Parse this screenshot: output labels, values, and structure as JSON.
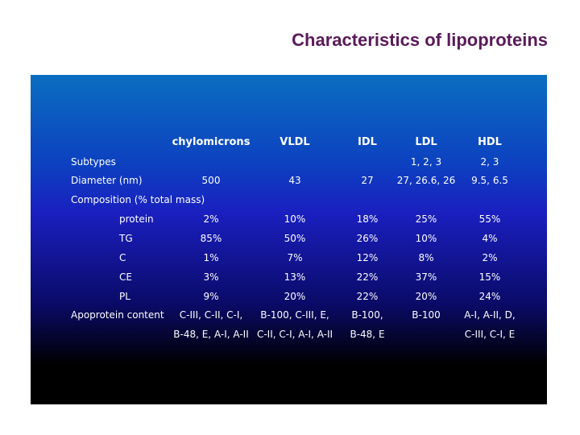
{
  "slide": {
    "title": "Characteristics of lipoproteins"
  },
  "table": {
    "headers": [
      "chylomicrons",
      "VLDL",
      "IDL",
      "LDL",
      "HDL"
    ],
    "rows": [
      {
        "label": "Subtypes",
        "values": [
          "",
          "",
          "",
          "1, 2, 3",
          "2, 3"
        ]
      },
      {
        "label": "Diameter (nm)",
        "values": [
          "500",
          "43",
          "27",
          "27, 26.6, 26",
          "9.5, 6.5"
        ]
      },
      {
        "label": "Composition (% total mass)",
        "values": [
          "",
          "",
          "",
          "",
          ""
        ]
      },
      {
        "label": "protein",
        "values": [
          "2%",
          "10%",
          "18%",
          "25%",
          "55%"
        ]
      },
      {
        "label": "TG",
        "values": [
          "85%",
          "50%",
          "26%",
          "10%",
          "4%"
        ]
      },
      {
        "label": "C",
        "values": [
          "1%",
          "7%",
          "12%",
          "8%",
          "2%"
        ]
      },
      {
        "label": "CE",
        "values": [
          "3%",
          "13%",
          "22%",
          "37%",
          "15%"
        ]
      },
      {
        "label": "PL",
        "values": [
          "9%",
          "20%",
          "22%",
          "20%",
          "24%"
        ]
      },
      {
        "label": "Apoprotein content",
        "values": [
          "C-III, C-II, C-I,",
          "B-100, C-III, E,",
          "B-100,",
          "B-100",
          "A-I, A-II, D,"
        ]
      },
      {
        "label": "",
        "values": [
          "B-48, E, A-I, A-II",
          "C-II, C-I, A-I, A-II",
          "B-48, E",
          "",
          "C-III, C-I, E"
        ]
      }
    ]
  }
}
